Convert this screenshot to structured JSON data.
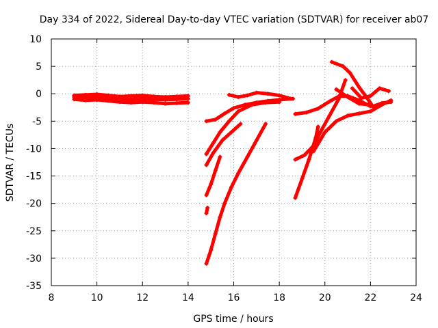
{
  "chart_data": {
    "type": "scatter",
    "title": "Day 334 of 2022, Sidereal Day-to-day VTEC variation (SDTVAR) for receiver ab07",
    "xlabel": "GPS time / hours",
    "ylabel": "SDTVAR / TECUs",
    "xlim": [
      8,
      24
    ],
    "ylim": [
      -35,
      10
    ],
    "xticks": [
      "8",
      "10",
      "12",
      "14",
      "16",
      "18",
      "20",
      "22",
      "24"
    ],
    "yticks": [
      "10",
      "5",
      "0",
      "-5",
      "-10",
      "-15",
      "-20",
      "-25",
      "-30",
      "-35"
    ],
    "grid": true,
    "marker": "plus",
    "color": "#ff0000",
    "series": [
      {
        "x": [
          9.0,
          9.5,
          10.0,
          10.5,
          11.0,
          11.5,
          12.0,
          12.5,
          13.0,
          13.5,
          14.0
        ],
        "y": [
          -0.3,
          -0.2,
          -0.1,
          -0.3,
          -0.5,
          -0.4,
          -0.3,
          -0.5,
          -0.6,
          -0.5,
          -0.4
        ]
      },
      {
        "x": [
          9.0,
          9.5,
          10.0,
          10.5,
          11.0,
          11.5,
          12.0,
          12.5,
          13.0,
          13.5,
          14.0
        ],
        "y": [
          -1.0,
          -1.2,
          -1.1,
          -1.3,
          -1.5,
          -1.6,
          -1.5,
          -1.6,
          -1.8,
          -1.7,
          -1.6
        ]
      },
      {
        "x": [
          9.0,
          9.5,
          10.0,
          10.5,
          11.0,
          11.5,
          12.0,
          12.5,
          13.0,
          13.5,
          14.0
        ],
        "y": [
          -0.6,
          -0.7,
          -0.6,
          -0.8,
          -0.9,
          -1.0,
          -0.9,
          -1.0,
          -1.1,
          -1.0,
          -0.9
        ]
      },
      {
        "x": [
          14.8,
          15.2,
          15.6,
          16.0,
          16.5,
          17.0,
          17.5,
          18.0,
          18.6
        ],
        "y": [
          -5.0,
          -4.7,
          -3.6,
          -2.6,
          -2.0,
          -1.6,
          -1.3,
          -1.1,
          -0.9
        ]
      },
      {
        "x": [
          15.8,
          16.2,
          16.6,
          17.0,
          17.5,
          18.0,
          18.5
        ],
        "y": [
          -0.2,
          -0.6,
          -0.3,
          0.2,
          0.0,
          -0.3,
          -0.9
        ]
      },
      {
        "x": [
          14.8,
          15.1,
          15.4,
          15.8,
          16.2,
          16.8,
          17.4,
          18.0
        ],
        "y": [
          -11.0,
          -9.0,
          -7.0,
          -5.0,
          -3.2,
          -2.0,
          -1.6,
          -1.5
        ]
      },
      {
        "x": [
          14.8,
          15.1,
          15.5,
          15.9,
          16.3
        ],
        "y": [
          -13.0,
          -10.8,
          -8.5,
          -7.0,
          -5.5
        ]
      },
      {
        "x": [
          14.8,
          15.0,
          15.2,
          15.4
        ],
        "y": [
          -18.5,
          -16.5,
          -14.0,
          -11.5
        ]
      },
      {
        "x": [
          14.8,
          14.85
        ],
        "y": [
          -21.8,
          -20.8
        ]
      },
      {
        "x": [
          14.8,
          15.0,
          15.2,
          15.4,
          15.6,
          15.9,
          16.2,
          16.6,
          17.0,
          17.4
        ],
        "y": [
          -31.0,
          -28.5,
          -25.5,
          -22.5,
          -20.0,
          -17.0,
          -14.5,
          -11.5,
          -8.5,
          -5.5
        ]
      },
      {
        "x": [
          18.7,
          19.2,
          19.7,
          20.2,
          20.6,
          21.0,
          21.5,
          22.0
        ],
        "y": [
          -3.7,
          -3.4,
          -2.7,
          -1.4,
          -0.5,
          -0.4,
          -1.2,
          -2.3
        ]
      },
      {
        "x": [
          18.7,
          19.1,
          19.5,
          19.8,
          20.2,
          20.6,
          20.9
        ],
        "y": [
          -12.0,
          -11.2,
          -9.5,
          -7.0,
          -4.0,
          -1.0,
          2.5
        ]
      },
      {
        "x": [
          18.7,
          19.0,
          19.3,
          19.6,
          19.7
        ],
        "y": [
          -19.0,
          -15.5,
          -12.0,
          -8.0,
          -6.0
        ]
      },
      {
        "x": [
          19.5,
          20.0,
          20.5,
          21.0,
          21.5,
          22.0,
          22.5,
          22.9
        ],
        "y": [
          -10.5,
          -7.0,
          -5.0,
          -4.0,
          -3.6,
          -3.2,
          -2.0,
          -1.2
        ]
      },
      {
        "x": [
          20.3,
          20.8,
          21.1,
          21.5,
          21.8,
          22.1,
          22.5,
          22.9
        ],
        "y": [
          5.8,
          5.0,
          3.8,
          1.2,
          -0.5,
          -2.3,
          -1.7,
          -1.5
        ]
      },
      {
        "x": [
          21.2,
          21.6,
          22.0,
          22.4,
          22.8
        ],
        "y": [
          1.0,
          -0.8,
          -0.4,
          1.0,
          0.5
        ]
      },
      {
        "x": [
          20.5,
          21.0,
          21.5,
          22.0
        ],
        "y": [
          0.8,
          -0.6,
          -1.8,
          -2.0
        ]
      }
    ]
  }
}
